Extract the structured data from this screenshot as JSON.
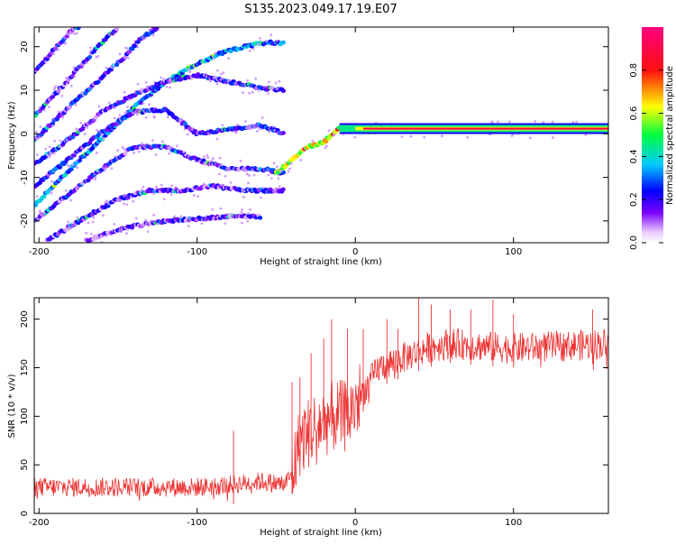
{
  "title": "S135.2023.049.17.19.E07",
  "colors": {
    "snr_line": "#ee3333",
    "frame": "#000000"
  },
  "chart_data": [
    {
      "type": "heatmap",
      "xlabel": "Height of straight line (km)",
      "ylabel": "Frequency (Hz)",
      "xlim": [
        -203,
        160
      ],
      "ylim": [
        -25,
        24.5
      ],
      "xticks": [
        "-200",
        "-100",
        "0",
        "100"
      ],
      "yticks": [
        "20",
        "10",
        "0",
        "-10",
        "-20"
      ],
      "xtick_values": [
        -200,
        -100,
        0,
        100
      ],
      "ytick_values": [
        20,
        10,
        0,
        -10,
        -20
      ],
      "colorbar": {
        "label": "Normalized spectral amplitude",
        "range": [
          0.0,
          1.0
        ],
        "ticks": [
          "0.0",
          "0.2",
          "0.4",
          "0.6",
          "0.8"
        ],
        "tick_values": [
          0.0,
          0.2,
          0.4,
          0.6,
          0.8
        ]
      },
      "tracks": [
        {
          "name": "fundamental",
          "points": [
            [
              -203,
              -16.5
            ],
            [
              -180,
              -8
            ],
            [
              -160,
              -1
            ],
            [
              -140,
              6
            ],
            [
              -120,
              12
            ],
            [
              -100,
              16
            ],
            [
              -85,
              18.5
            ],
            [
              -70,
              20
            ],
            [
              -55,
              21
            ],
            [
              -45,
              20.8
            ]
          ],
          "amp": 0.3
        },
        {
          "name": "upper-harmonic-1",
          "points": [
            [
              -203,
              -1.5
            ],
            [
              -180,
              6.5
            ],
            [
              -160,
              13
            ],
            [
              -145,
              18
            ],
            [
              -135,
              22
            ],
            [
              -125,
              24.5
            ]
          ],
          "amp": 0.18
        },
        {
          "name": "upper-harmonic-2",
          "points": [
            [
              -203,
              4
            ],
            [
              -185,
              11
            ],
            [
              -170,
              17
            ],
            [
              -160,
              21
            ],
            [
              -150,
              24.5
            ]
          ],
          "amp": 0.17
        },
        {
          "name": "upper-harmonic-3",
          "points": [
            [
              -203,
              14
            ],
            [
              -190,
              19.5
            ],
            [
              -180,
              23.5
            ],
            [
              -175,
              24.5
            ]
          ],
          "amp": 0.17
        },
        {
          "name": "lower-harmonic-1",
          "points": [
            [
              -203,
              -7
            ],
            [
              -180,
              -1
            ],
            [
              -160,
              5
            ],
            [
              -140,
              9
            ],
            [
              -120,
              12
            ],
            [
              -100,
              13.5
            ],
            [
              -80,
              12
            ],
            [
              -60,
              10.5
            ],
            [
              -45,
              10
            ]
          ],
          "amp": 0.18
        },
        {
          "name": "lower-harmonic-2",
          "points": [
            [
              -203,
              -12
            ],
            [
              -180,
              -5.5
            ],
            [
              -160,
              0.5
            ],
            [
              -140,
              5
            ],
            [
              -120,
              5.5
            ],
            [
              -100,
              0
            ],
            [
              -80,
              1
            ],
            [
              -60,
              2
            ],
            [
              -45,
              0
            ]
          ],
          "amp": 0.2
        },
        {
          "name": "lower-harmonic-3",
          "points": [
            [
              -203,
              -20
            ],
            [
              -180,
              -13.5
            ],
            [
              -160,
              -8
            ],
            [
              -140,
              -3
            ],
            [
              -120,
              -3
            ],
            [
              -100,
              -6
            ],
            [
              -80,
              -8
            ],
            [
              -60,
              -8
            ],
            [
              -45,
              -9
            ]
          ],
          "amp": 0.18
        },
        {
          "name": "lower-harmonic-4",
          "points": [
            [
              -195,
              -24.5
            ],
            [
              -170,
              -19
            ],
            [
              -150,
              -15
            ],
            [
              -130,
              -13
            ],
            [
              -110,
              -13
            ],
            [
              -90,
              -12
            ],
            [
              -70,
              -13
            ],
            [
              -45,
              -13
            ]
          ],
          "amp": 0.16
        },
        {
          "name": "lower-harmonic-5",
          "points": [
            [
              -170,
              -24.5
            ],
            [
              -145,
              -21.5
            ],
            [
              -120,
              -20
            ],
            [
              -100,
              -19.5
            ],
            [
              -80,
              -19
            ],
            [
              -60,
              -19
            ]
          ],
          "amp": 0.14
        },
        {
          "name": "merge",
          "points": [
            [
              -50,
              -9
            ],
            [
              -40,
              -6
            ],
            [
              -30,
              -3
            ],
            [
              -20,
              -2
            ],
            [
              -10,
              1.5
            ],
            [
              0,
              1
            ],
            [
              10,
              0.5
            ],
            [
              20,
              0.8
            ],
            [
              50,
              0.8
            ],
            [
              90,
              1
            ],
            [
              160,
              1
            ]
          ],
          "amp": 0.6
        }
      ],
      "flat_band": {
        "x_start": -10,
        "x_end": 160,
        "freq": 1.2,
        "amp": 0.9
      }
    },
    {
      "type": "line",
      "xlabel": "Height of straight line (km)",
      "ylabel": "SNR (10 * v/v)",
      "xlim": [
        -203,
        160
      ],
      "ylim": [
        0,
        222
      ],
      "xticks": [
        "-200",
        "-100",
        "0",
        "100"
      ],
      "yticks": [
        "200",
        "150",
        "100",
        "50",
        "0"
      ],
      "xtick_values": [
        -200,
        -100,
        0,
        100
      ],
      "ytick_values": [
        200,
        150,
        100,
        50,
        0
      ],
      "trend": [
        [
          -203,
          27
        ],
        [
          -100,
          27
        ],
        [
          -75,
          30
        ],
        [
          -60,
          33
        ],
        [
          -45,
          30
        ],
        [
          -40,
          40
        ],
        [
          -35,
          75
        ],
        [
          -25,
          90
        ],
        [
          -15,
          100
        ],
        [
          -5,
          100
        ],
        [
          5,
          125
        ],
        [
          15,
          150
        ],
        [
          30,
          160
        ],
        [
          45,
          170
        ],
        [
          60,
          175
        ],
        [
          80,
          172
        ],
        [
          100,
          170
        ],
        [
          130,
          172
        ],
        [
          160,
          175
        ]
      ],
      "spikes": [
        [
          -77,
          85
        ],
        [
          -40,
          135
        ],
        [
          -35,
          140
        ],
        [
          -28,
          165
        ],
        [
          -20,
          180
        ],
        [
          -15,
          200
        ],
        [
          -5,
          190
        ],
        [
          5,
          190
        ],
        [
          20,
          200
        ],
        [
          27,
          190
        ],
        [
          40,
          222
        ],
        [
          48,
          215
        ],
        [
          60,
          210
        ],
        [
          73,
          210
        ],
        [
          87,
          220
        ],
        [
          100,
          205
        ],
        [
          150,
          210
        ]
      ]
    }
  ]
}
